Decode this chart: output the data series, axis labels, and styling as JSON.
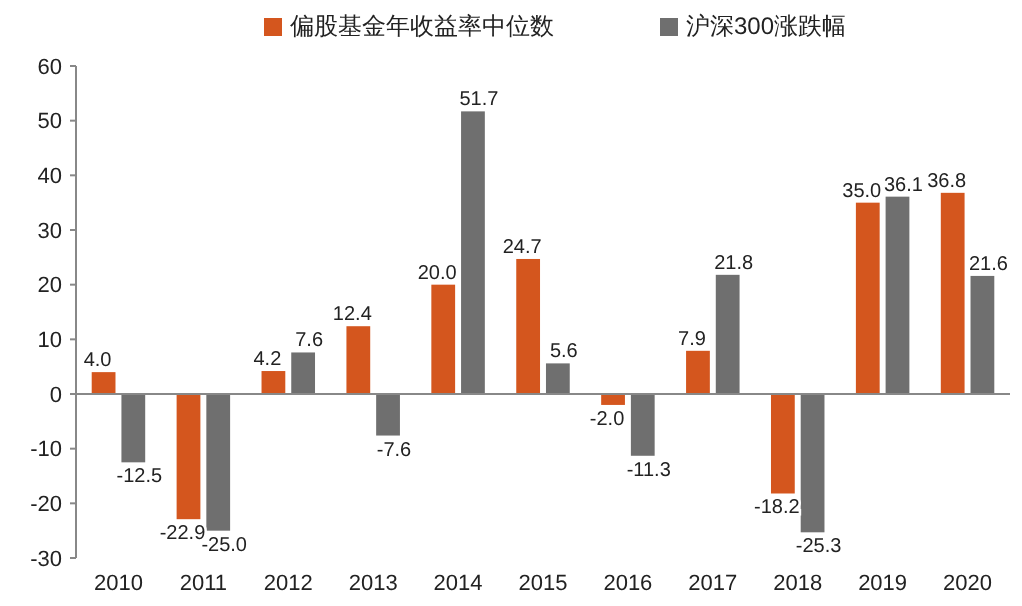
{
  "chart_data": {
    "type": "bar",
    "categories": [
      "2010",
      "2011",
      "2012",
      "2013",
      "2014",
      "2015",
      "2016",
      "2017",
      "2018",
      "2019",
      "2020"
    ],
    "series": [
      {
        "name": "偏股基金年收益率中位数",
        "color": "#d4561e",
        "values": [
          4.0,
          -22.9,
          4.2,
          12.4,
          20.0,
          24.7,
          -2.0,
          7.9,
          -18.2,
          35.0,
          36.8
        ],
        "value_labels": [
          "4.0",
          "-22.9",
          "4.2",
          "12.4",
          "20.0",
          "24.7",
          "-2.0",
          "7.9",
          "-18.2",
          "35.0",
          "36.8"
        ]
      },
      {
        "name": "沪深300涨跌幅",
        "color": "#6f6f6f",
        "values": [
          -12.5,
          -25.0,
          7.6,
          -7.6,
          51.7,
          5.6,
          -11.3,
          21.8,
          -25.3,
          36.1,
          21.6
        ],
        "value_labels": [
          "-12.5",
          "-25.0",
          "7.6",
          "-7.6",
          "51.7",
          "5.6",
          "-11.3",
          "21.8",
          "-25.3",
          "36.1",
          "21.6"
        ]
      }
    ],
    "ylim": [
      -30,
      60
    ],
    "yticks": [
      -30,
      -20,
      -10,
      0,
      10,
      20,
      30,
      40,
      50,
      60
    ],
    "legend": "top"
  }
}
